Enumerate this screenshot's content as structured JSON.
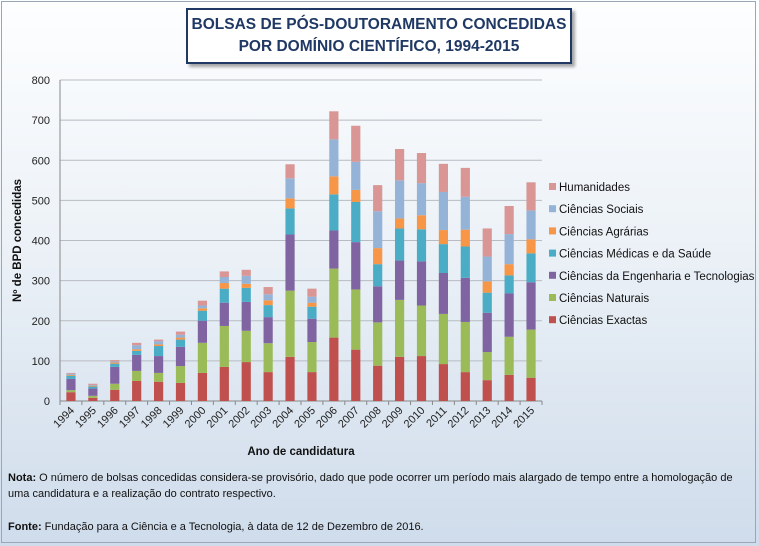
{
  "chart_data": {
    "type": "bar",
    "stacked": true,
    "title_line1": "BOLSAS DE PÓS-DOUTORAMENTO CONCEDIDAS",
    "title_line2": "POR DOMÍNIO CIENTÍFICO, 1994-2015",
    "xlabel": "Ano de candidatura",
    "ylabel": "Nº de BPD concedidas",
    "ylim": [
      0,
      800
    ],
    "yticks": [
      "0",
      "100",
      "200",
      "300",
      "400",
      "500",
      "600",
      "700",
      "800"
    ],
    "grid": true,
    "legend_position": "right",
    "categories": [
      "1994",
      "1995",
      "1996",
      "1997",
      "1998",
      "1999",
      "2000",
      "2001",
      "2002",
      "2003",
      "2004",
      "2005",
      "2006",
      "2007",
      "2008",
      "2009",
      "2010",
      "2011",
      "2012",
      "2013",
      "2014",
      "2015"
    ],
    "series": [
      {
        "name": "Ciências Exactas",
        "color": "#c0504d",
        "values": [
          22,
          8,
          28,
          50,
          48,
          45,
          70,
          85,
          97,
          72,
          110,
          72,
          158,
          128,
          88,
          110,
          112,
          92,
          72,
          52,
          65,
          58
        ]
      },
      {
        "name": "Ciências Naturais",
        "color": "#9bbb59",
        "values": [
          5,
          5,
          15,
          25,
          22,
          42,
          75,
          102,
          78,
          72,
          165,
          75,
          172,
          150,
          108,
          142,
          126,
          125,
          125,
          70,
          95,
          120
        ]
      },
      {
        "name": "Ciências da Engenharia e Tecnologias",
        "color": "#8064a2",
        "values": [
          28,
          18,
          42,
          40,
          42,
          48,
          55,
          58,
          72,
          65,
          140,
          58,
          95,
          118,
          90,
          98,
          110,
          102,
          110,
          98,
          108,
          118
        ]
      },
      {
        "name": "Ciências Médicas e da Saúde",
        "color": "#4bacc6",
        "values": [
          8,
          5,
          8,
          10,
          25,
          18,
          25,
          35,
          35,
          30,
          65,
          30,
          90,
          100,
          55,
          80,
          80,
          72,
          78,
          50,
          45,
          72
        ]
      },
      {
        "name": "Ciências Agrárias",
        "color": "#f79646",
        "values": [
          2,
          2,
          3,
          4,
          4,
          5,
          6,
          14,
          10,
          12,
          25,
          10,
          45,
          30,
          40,
          25,
          35,
          35,
          42,
          28,
          28,
          35
        ]
      },
      {
        "name": "Ciências Sociais",
        "color": "#95b3d7",
        "values": [
          3,
          2,
          3,
          10,
          8,
          7,
          7,
          15,
          20,
          15,
          50,
          15,
          92,
          70,
          92,
          95,
          80,
          95,
          82,
          62,
          75,
          72
        ]
      },
      {
        "name": "Humanidades",
        "color": "#d99694",
        "values": [
          2,
          3,
          3,
          6,
          4,
          8,
          12,
          14,
          15,
          18,
          35,
          20,
          70,
          90,
          65,
          78,
          75,
          70,
          72,
          70,
          70,
          70
        ]
      }
    ]
  },
  "note": {
    "label": "Nota:",
    "text": " O número de bolsas concedidas considera-se provisório, dado que pode ocorrer um período mais alargado de tempo entre a homologação de uma candidatura e a realização do contrato respectivo."
  },
  "source": {
    "label": "Fonte:",
    "text": " Fundação para a Ciência e a Tecnologia, à data de 12 de Dezembro de 2016."
  }
}
